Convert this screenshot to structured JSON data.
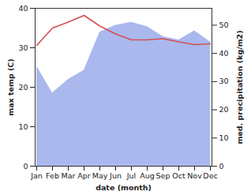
{
  "chart_data": {
    "type": "line",
    "xlabel": "date (month)",
    "ylabel": "max temp (C)",
    "y2label": "med. precipitation (kg/m2)",
    "categories": [
      "Jan",
      "Feb",
      "Mar",
      "Apr",
      "May",
      "Jun",
      "Jul",
      "Aug",
      "Sep",
      "Oct",
      "Nov",
      "Dec"
    ],
    "series": [
      {
        "type": "line",
        "color": "#d45050",
        "values": [
          30.6,
          35,
          36.5,
          38.2,
          35.5,
          33.5,
          32,
          32,
          32.3,
          31.5,
          30.8,
          31
        ]
      },
      {
        "type": "area",
        "axis": "y2",
        "color": "#aab8ee",
        "values": [
          35.5,
          26,
          30.7,
          34,
          47.5,
          50,
          51,
          49.5,
          46,
          44.7,
          48,
          44
        ]
      }
    ],
    "ylim": [
      0,
      40
    ],
    "yticks": [
      0,
      10,
      20,
      30,
      40
    ],
    "y2lim": [
      0,
      56
    ],
    "y2ticks": [
      0,
      10,
      20,
      30,
      40,
      50
    ],
    "grid": false
  }
}
